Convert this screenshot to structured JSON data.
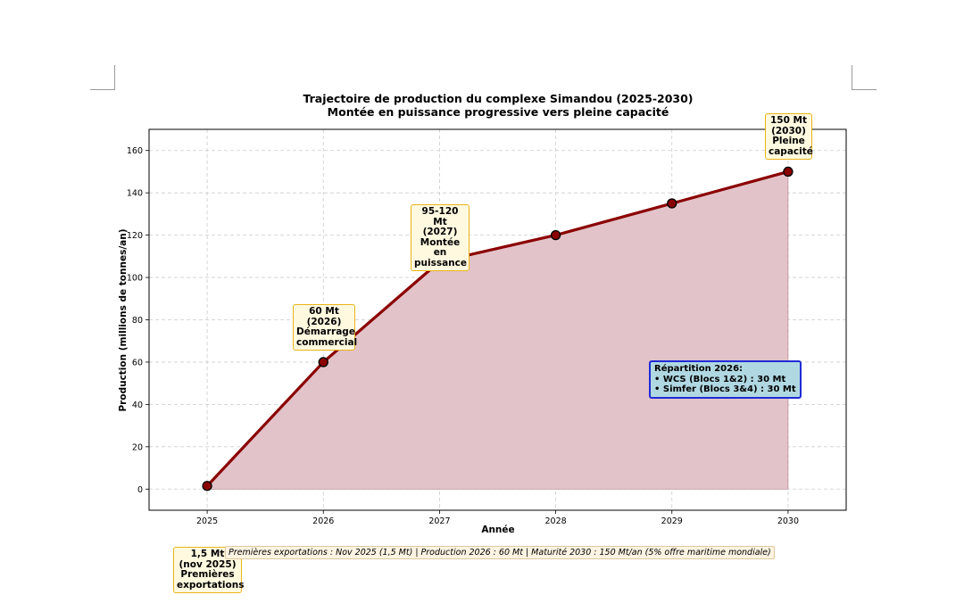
{
  "chart_data": {
    "type": "area",
    "title": "Trajectoire de production du complexe Simandou (2025-2030)",
    "subtitle": "Montée en puissance progressive vers pleine capacité",
    "xlabel": "Année",
    "ylabel": "Production (millions de tonnes/an)",
    "x": [
      2025,
      2026,
      2027,
      2028,
      2029,
      2030
    ],
    "series": [
      {
        "values": [
          1.5,
          60,
          107.5,
          120,
          135,
          150
        ]
      }
    ],
    "xlim": [
      2024.5,
      2030.5
    ],
    "ylim": [
      -10,
      170
    ],
    "xticks": [
      "2025",
      "2026",
      "2027",
      "2028",
      "2029",
      "2030"
    ],
    "yticks": [
      "0",
      "20",
      "40",
      "60",
      "80",
      "100",
      "120",
      "140",
      "160"
    ],
    "grid": true,
    "colors": {
      "line": "#8b0000",
      "fill": "#e2c3c9",
      "marker": "#8b0000"
    },
    "annotations": [
      {
        "x": 2025,
        "lines": [
          "1,5 Mt",
          "(nov 2025)",
          "Premières",
          "exportations"
        ]
      },
      {
        "x": 2026,
        "lines": [
          "60 Mt",
          "(2026)",
          "Démarrage",
          "commercial"
        ]
      },
      {
        "x": 2027,
        "lines": [
          "95-120 Mt",
          "(2027)",
          "Montée en",
          "puissance"
        ]
      },
      {
        "x": 2030,
        "lines": [
          "150 Mt",
          "(2030)",
          "Pleine",
          "capacité"
        ]
      }
    ],
    "info_box": {
      "title": "Répartition 2026:",
      "lines": [
        "• WCS (Blocs 1&2) : 30 Mt",
        "• Simfer (Blocs 3&4) : 30 Mt"
      ]
    },
    "footnote": "Premières exportations : Nov 2025 (1,5 Mt) | Production 2026 : 60 Mt | Maturité 2030 : 150 Mt/an (5% offre maritime mondiale)"
  }
}
